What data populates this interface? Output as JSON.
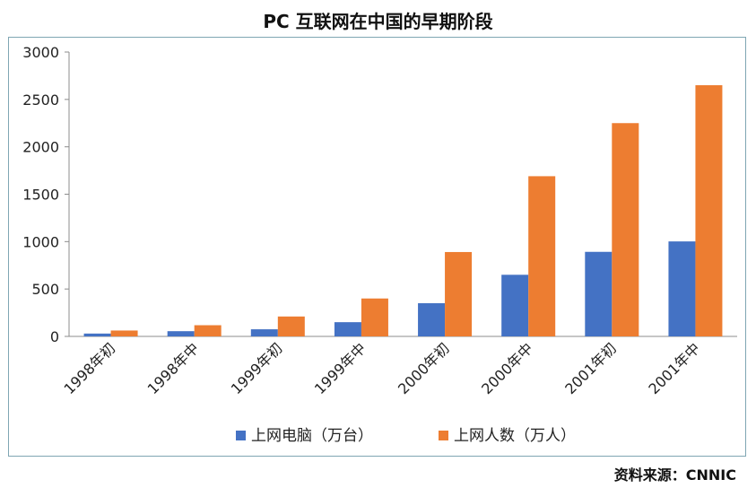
{
  "title": "PC 互联网在中国的早期阶段",
  "source": "资料来源：CNNIC",
  "chart_data": {
    "type": "bar",
    "categories": [
      "1998年初",
      "1998年中",
      "1999年初",
      "1999年中",
      "2000年初",
      "2000年中",
      "2001年初",
      "2001年中"
    ],
    "series": [
      {
        "name": "上网电脑（万台）",
        "color": "#4472c4",
        "values": [
          30,
          55,
          75,
          150,
          350,
          650,
          892,
          1002
        ]
      },
      {
        "name": "上网人数（万人）",
        "color": "#ed7d31",
        "values": [
          62,
          118,
          210,
          400,
          890,
          1690,
          2250,
          2650
        ]
      }
    ],
    "yticks": [
      0,
      500,
      1000,
      1500,
      2000,
      2500,
      3000
    ],
    "ylim": [
      0,
      3000
    ],
    "grid": false,
    "legend": "bottom"
  }
}
